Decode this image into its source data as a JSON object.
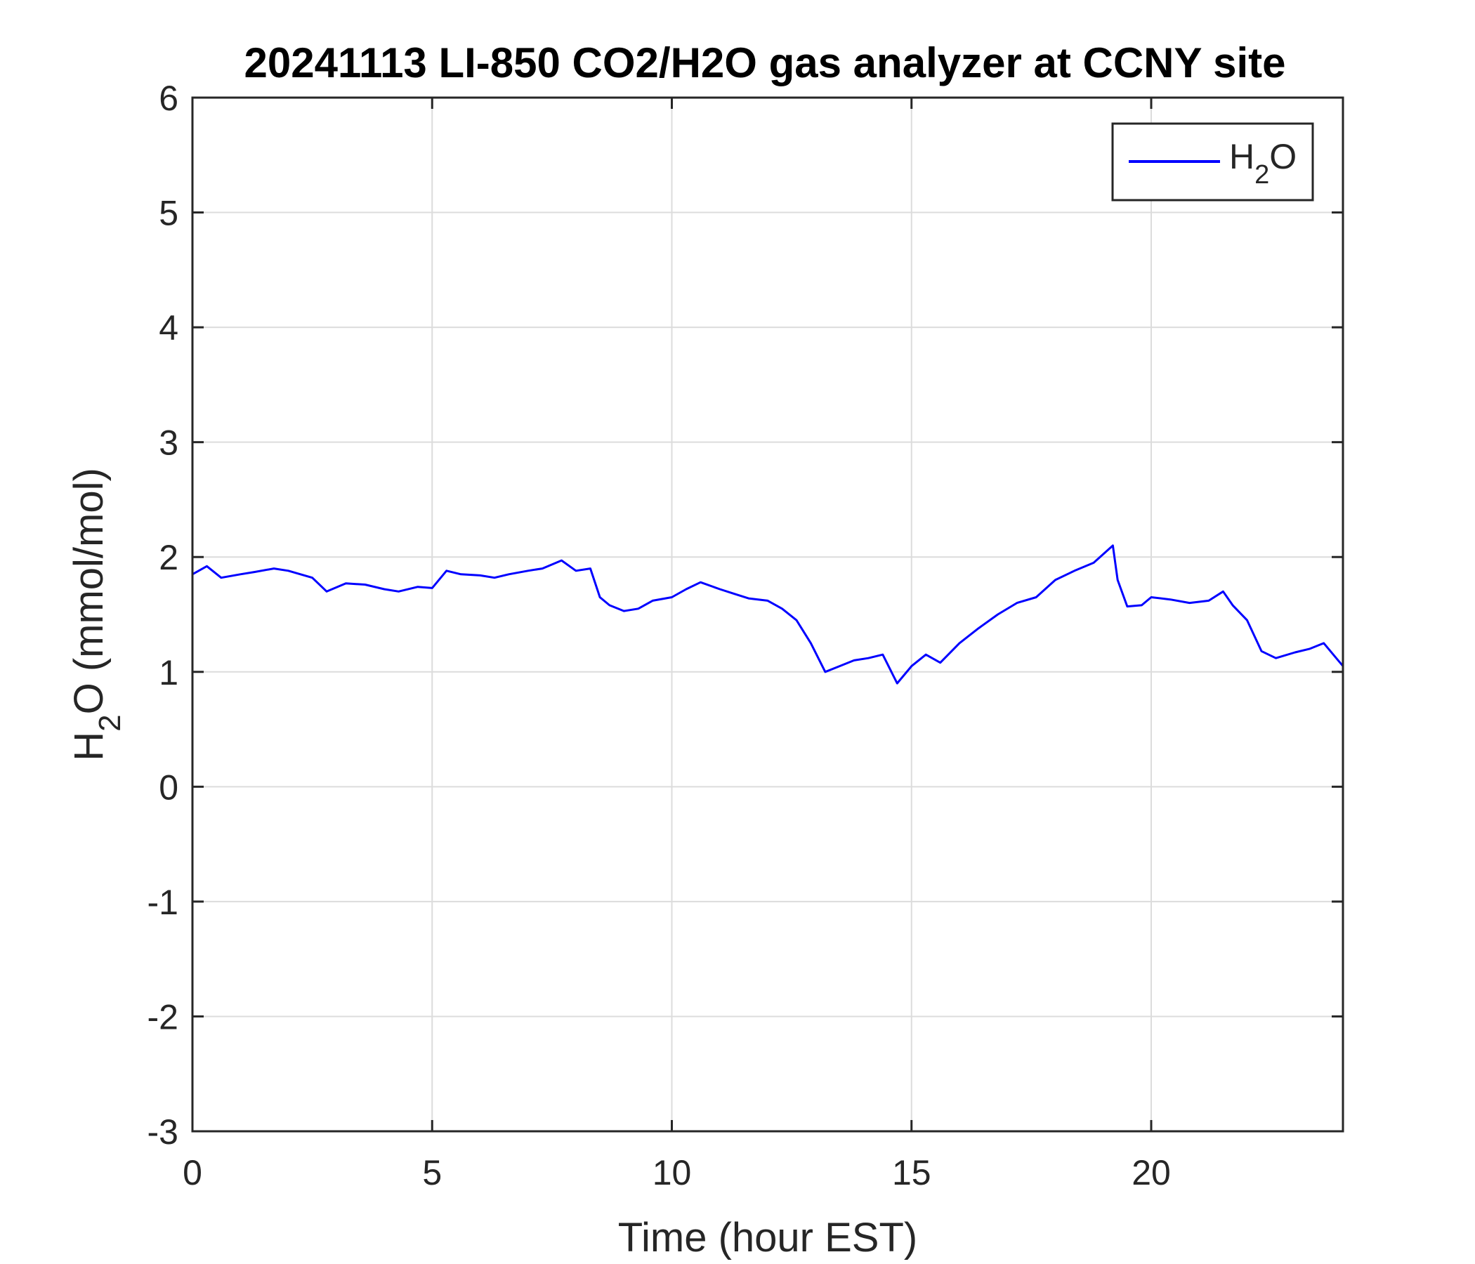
{
  "chart_data": {
    "type": "line",
    "title": "20241113 LI-850 CO2/H2O gas analyzer at CCNY site",
    "xlabel": "Time (hour EST)",
    "ylabel": {
      "main": "H",
      "sub": "2",
      "rest": "O (mmol/mol)"
    },
    "xlim": [
      0,
      24
    ],
    "ylim": [
      -3,
      6
    ],
    "xticks": [
      0,
      5,
      10,
      15,
      20
    ],
    "yticks": [
      -3,
      -2,
      -1,
      0,
      1,
      2,
      3,
      4,
      5,
      6
    ],
    "grid": true,
    "legend": {
      "position": "top-right",
      "entries": [
        {
          "main": "H",
          "sub": "2",
          "rest": "O"
        }
      ]
    },
    "series": [
      {
        "name": "H2O",
        "color": "#0000ff",
        "x": [
          0.0,
          0.3,
          0.6,
          1.0,
          1.3,
          1.7,
          2.0,
          2.5,
          2.8,
          3.2,
          3.6,
          4.0,
          4.3,
          4.7,
          5.0,
          5.3,
          5.6,
          6.0,
          6.3,
          6.6,
          7.0,
          7.3,
          7.7,
          8.0,
          8.3,
          8.5,
          8.7,
          9.0,
          9.3,
          9.6,
          10.0,
          10.3,
          10.6,
          11.0,
          11.3,
          11.6,
          12.0,
          12.3,
          12.6,
          12.9,
          13.2,
          13.5,
          13.8,
          14.1,
          14.4,
          14.7,
          15.0,
          15.3,
          15.6,
          16.0,
          16.4,
          16.8,
          17.2,
          17.6,
          18.0,
          18.4,
          18.8,
          19.2,
          19.3,
          19.5,
          19.8,
          20.0,
          20.4,
          20.8,
          21.2,
          21.5,
          21.7,
          22.0,
          22.3,
          22.6,
          23.0,
          23.3,
          23.6,
          24.0
        ],
        "y": [
          1.85,
          1.92,
          1.82,
          1.85,
          1.87,
          1.9,
          1.88,
          1.82,
          1.7,
          1.77,
          1.76,
          1.72,
          1.7,
          1.74,
          1.73,
          1.88,
          1.85,
          1.84,
          1.82,
          1.85,
          1.88,
          1.9,
          1.97,
          1.88,
          1.9,
          1.65,
          1.58,
          1.53,
          1.55,
          1.62,
          1.65,
          1.72,
          1.78,
          1.72,
          1.68,
          1.64,
          1.62,
          1.55,
          1.45,
          1.25,
          1.0,
          1.05,
          1.1,
          1.12,
          1.15,
          0.9,
          1.05,
          1.15,
          1.08,
          1.25,
          1.38,
          1.5,
          1.6,
          1.65,
          1.8,
          1.88,
          1.95,
          2.1,
          1.8,
          1.57,
          1.58,
          1.65,
          1.63,
          1.6,
          1.62,
          1.7,
          1.58,
          1.45,
          1.18,
          1.12,
          1.17,
          1.2,
          1.25,
          1.05
        ]
      }
    ]
  }
}
